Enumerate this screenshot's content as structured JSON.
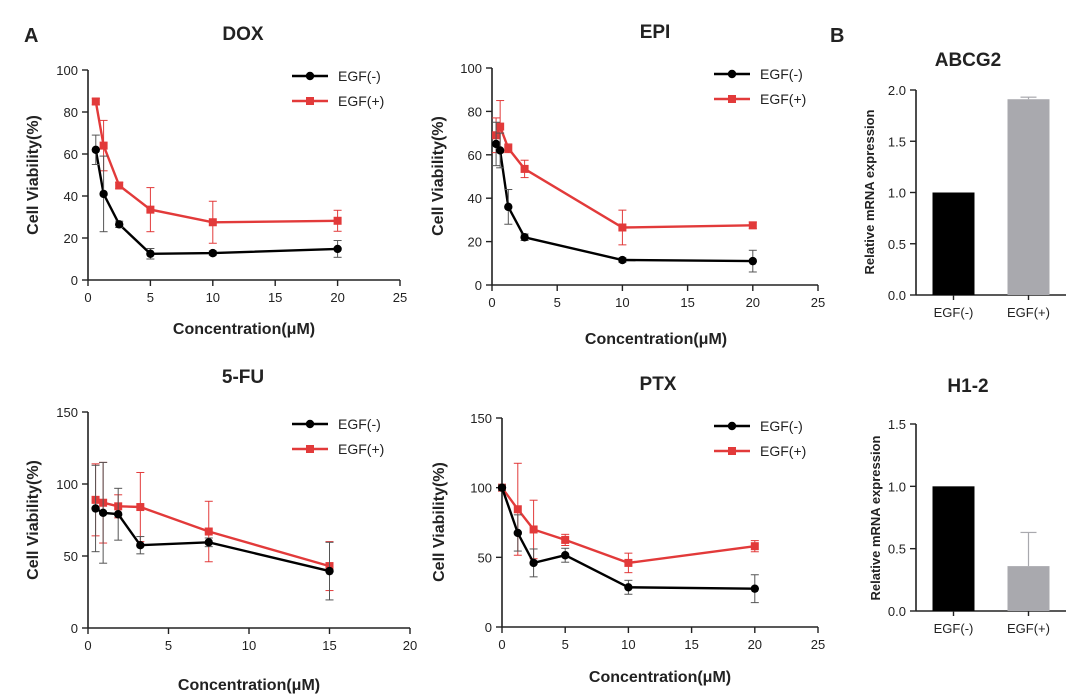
{
  "panel_labels": {
    "a": "A",
    "b": "B"
  },
  "colors": {
    "egf_minus": "#000000",
    "egf_plus": "#e23a3a",
    "bar_minus": "#000000",
    "bar_plus": "#a9a9ae",
    "axis": "#222222"
  },
  "chart_data": [
    {
      "type": "line",
      "title": "DOX",
      "xlabel": "Concentration(μM)",
      "ylabel": "Cell Viability(%)",
      "xlim": [
        0,
        25
      ],
      "ylim": [
        0,
        100
      ],
      "xticks": [
        0,
        5,
        10,
        15,
        20,
        25
      ],
      "yticks": [
        0,
        20,
        40,
        60,
        80,
        100
      ],
      "series": [
        {
          "name": "EGF(-)",
          "x": [
            0.625,
            1.25,
            2.5,
            5,
            10,
            20
          ],
          "y": [
            62,
            41,
            26.5,
            12.5,
            12.8,
            14.8
          ],
          "err": [
            7,
            18,
            1.5,
            2.5,
            1,
            4
          ]
        },
        {
          "name": "EGF(+)",
          "x": [
            0.625,
            1.25,
            2.5,
            5,
            10,
            20
          ],
          "y": [
            85,
            64,
            45,
            33.5,
            27.5,
            28.2
          ],
          "err": [
            1.5,
            12,
            1.5,
            10.5,
            10,
            5
          ]
        }
      ]
    },
    {
      "type": "line",
      "title": "EPI",
      "xlabel": "Concentration(μM)",
      "ylabel": "Cell Viability(%)",
      "xlim": [
        0,
        25
      ],
      "ylim": [
        0,
        100
      ],
      "xticks": [
        0,
        5,
        10,
        15,
        20,
        25
      ],
      "yticks": [
        0,
        20,
        40,
        60,
        80,
        100
      ],
      "series": [
        {
          "name": "EGF(-)",
          "x": [
            0.3125,
            0.625,
            1.25,
            2.5,
            10,
            20
          ],
          "y": [
            65,
            62,
            36,
            22,
            11.5,
            11
          ],
          "err": [
            10,
            8,
            8,
            1.5,
            1,
            5
          ]
        },
        {
          "name": "EGF(+)",
          "x": [
            0.3125,
            0.625,
            1.25,
            2.5,
            10,
            20
          ],
          "y": [
            69,
            73,
            63,
            53.5,
            26.5,
            27.5
          ],
          "err": [
            8,
            12,
            2,
            4,
            8,
            1.5
          ]
        }
      ]
    },
    {
      "type": "line",
      "title": "5-FU",
      "xlabel": "Concentration(μM)",
      "ylabel": "Cell Viability(%)",
      "xlim": [
        0,
        20
      ],
      "ylim": [
        0,
        150
      ],
      "xticks": [
        0,
        5,
        10,
        15,
        20
      ],
      "yticks": [
        0,
        50,
        100,
        150
      ],
      "series": [
        {
          "name": "EGF(-)",
          "x": [
            0.47,
            0.94,
            1.875,
            3.25,
            7.5,
            15
          ],
          "y": [
            83,
            80,
            79,
            57.5,
            59.5,
            39.5
          ],
          "err": [
            30,
            35,
            18,
            6,
            3,
            20
          ]
        },
        {
          "name": "EGF(+)",
          "x": [
            0.47,
            0.94,
            1.875,
            3.25,
            7.5,
            15
          ],
          "y": [
            89,
            87,
            84.5,
            84,
            67,
            43
          ],
          "err": [
            25,
            28,
            8,
            24,
            21,
            17
          ]
        }
      ]
    },
    {
      "type": "line",
      "title": "PTX",
      "xlabel": "Concentration(μM)",
      "ylabel": "Cell Viability(%)",
      "xlim": [
        0,
        25
      ],
      "ylim": [
        0,
        150
      ],
      "xticks": [
        0,
        5,
        10,
        15,
        20,
        25
      ],
      "yticks": [
        0,
        50,
        100,
        150
      ],
      "series": [
        {
          "name": "EGF(-)",
          "x": [
            0,
            1.25,
            2.5,
            5,
            10,
            20
          ],
          "y": [
            100,
            67.5,
            46,
            51.5,
            28.5,
            27.5
          ],
          "err": [
            2,
            13,
            10,
            5,
            5,
            10
          ]
        },
        {
          "name": "EGF(+)",
          "x": [
            0,
            1.25,
            2.5,
            5,
            10,
            20
          ],
          "y": [
            100,
            84.5,
            70,
            62.5,
            46,
            58
          ],
          "err": [
            2,
            33,
            21,
            4,
            7,
            4
          ]
        }
      ]
    },
    {
      "type": "bar",
      "title": "ABCG2",
      "ylabel": "Relative mRNA expression",
      "categories": [
        "EGF(-)",
        "EGF(+)"
      ],
      "values": [
        1.0,
        1.91
      ],
      "err": [
        0,
        0.02
      ],
      "ylim": [
        0,
        2.0
      ],
      "yticks": [
        "0.0",
        "0.5",
        "1.0",
        "1.5",
        "2.0"
      ]
    },
    {
      "type": "bar",
      "title": "H1-2",
      "ylabel": "Relative mRNA expression",
      "categories": [
        "EGF(-)",
        "EGF(+)"
      ],
      "values": [
        1.0,
        0.36
      ],
      "err": [
        0,
        0.27
      ],
      "ylim": [
        0,
        1.5
      ],
      "yticks": [
        "0.0",
        "0.5",
        "1.0",
        "1.5"
      ]
    }
  ]
}
